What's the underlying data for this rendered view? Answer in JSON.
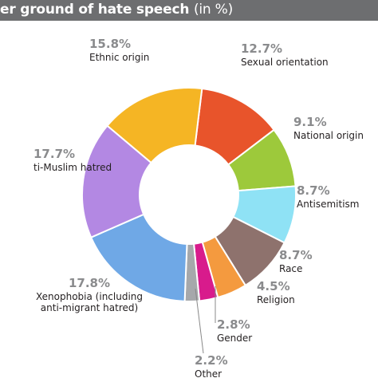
{
  "chart_data": {
    "type": "pie",
    "donut": true,
    "title": "er ground of hate speech",
    "title_unit": "(in %)",
    "title_bar_color": "#6d6e70",
    "slices": [
      {
        "label_lines": [
          "Sexual orientation"
        ],
        "value": 12.7,
        "value_text": "12.7%",
        "color": "#e8542b"
      },
      {
        "label_lines": [
          "National origin"
        ],
        "value": 9.1,
        "value_text": "9.1%",
        "color": "#9dc93b"
      },
      {
        "label_lines": [
          "Antisemitism"
        ],
        "value": 8.7,
        "value_text": "8.7%",
        "color": "#8fe2f5"
      },
      {
        "label_lines": [
          "Race"
        ],
        "value": 8.7,
        "value_text": "8.7%",
        "color": "#8e726d"
      },
      {
        "label_lines": [
          "Religion"
        ],
        "value": 4.5,
        "value_text": "4.5%",
        "color": "#f49a3f"
      },
      {
        "label_lines": [
          "Gender"
        ],
        "value": 2.8,
        "value_text": "2.8%",
        "color": "#d81b8c"
      },
      {
        "label_lines": [
          "Other"
        ],
        "value": 2.2,
        "value_text": "2.2%",
        "color": "#a6a8ab"
      },
      {
        "label_lines": [
          "Xenophobia (including",
          "anti-migrant hatred)"
        ],
        "value": 17.8,
        "value_text": "17.8%",
        "color": "#6fa8e6"
      },
      {
        "label_lines": [
          "ti-Muslim hatred"
        ],
        "value": 17.7,
        "value_text": "17.7%",
        "color": "#b388e3"
      },
      {
        "label_lines": [
          "Ethnic origin"
        ],
        "value": 15.8,
        "value_text": "15.8%",
        "color": "#f5b524"
      }
    ]
  }
}
